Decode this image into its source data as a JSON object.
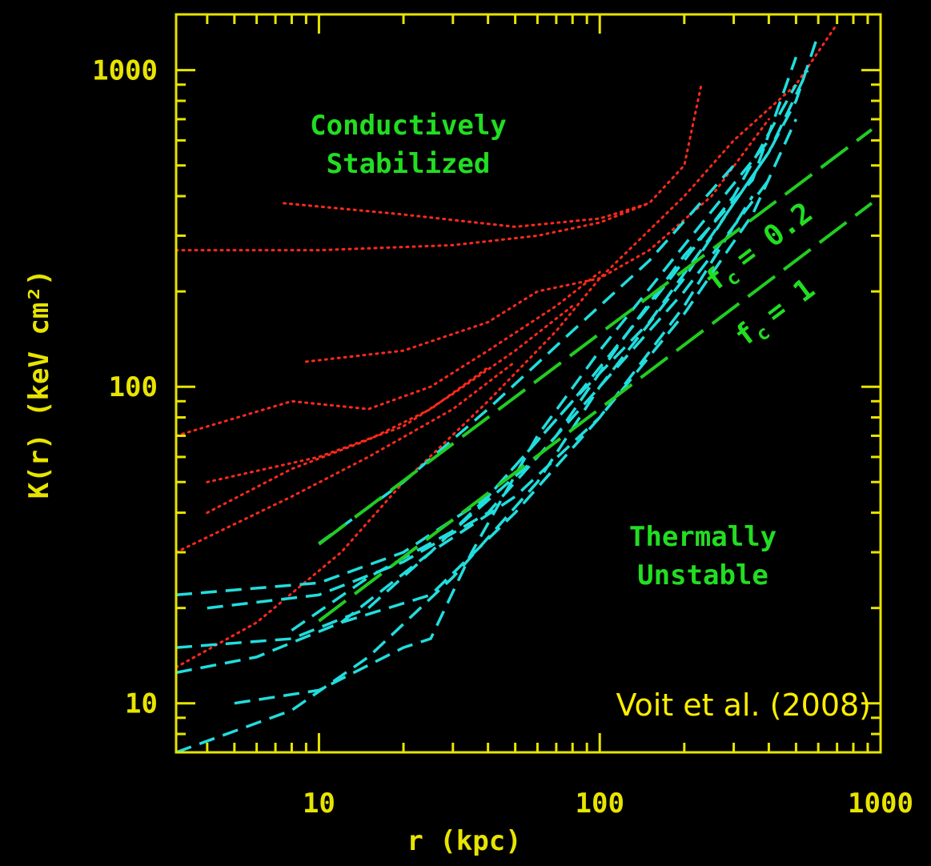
{
  "chart_data": {
    "type": "line",
    "x_label": "r   (kpc)",
    "y_label": "K(r)   (keV cm²)",
    "log_x": true,
    "log_y": true,
    "xlim": [
      3.1,
      1000
    ],
    "ylim": [
      7,
      1500
    ],
    "xticks": [
      10,
      100,
      1000
    ],
    "yticks": [
      10,
      100,
      1000
    ],
    "xminorticks": [
      4,
      5,
      6,
      7,
      8,
      9,
      20,
      30,
      40,
      50,
      60,
      70,
      80,
      90,
      200,
      300,
      400,
      500,
      600,
      700,
      800,
      900
    ],
    "yminorticks": [
      8,
      9,
      20,
      30,
      40,
      50,
      60,
      70,
      80,
      90,
      200,
      300,
      400,
      500,
      600,
      700,
      800,
      900
    ],
    "axis_color": "#e8e400",
    "region_labels": [
      "Conductively",
      "Stabilized",
      "Thermally",
      "Unstable"
    ],
    "region_color": "#22dd22",
    "credit": "Voit et al. (2008)",
    "line_labels": [
      {
        "symbol": "f",
        "subscript": "c",
        "text": "= 0.2"
      },
      {
        "symbol": "f",
        "subscript": "c",
        "text": "= 1"
      }
    ],
    "series": [
      {
        "style": "dotted",
        "color": "#ff2a1a",
        "x": [
          7.5,
          20,
          50,
          100,
          150,
          200,
          230
        ],
        "values": [
          380,
          350,
          320,
          340,
          380,
          500,
          900
        ]
      },
      {
        "style": "dotted",
        "color": "#ff2a1a",
        "x": [
          3.1,
          10,
          30,
          60,
          100,
          150
        ],
        "values": [
          270,
          270,
          280,
          300,
          330,
          380
        ]
      },
      {
        "style": "dotted",
        "color": "#ff2a1a",
        "x": [
          9,
          20,
          40,
          60,
          100,
          150,
          250,
          400
        ],
        "values": [
          120,
          130,
          160,
          200,
          220,
          270,
          400,
          700
        ]
      },
      {
        "style": "dotted",
        "color": "#ff2a1a",
        "x": [
          3.1,
          8,
          15,
          25,
          40,
          70,
          100
        ],
        "values": [
          70,
          90,
          85,
          100,
          130,
          180,
          230
        ]
      },
      {
        "style": "dotted",
        "color": "#ff2a1a",
        "x": [
          4,
          10,
          20,
          30,
          50,
          80
        ],
        "values": [
          50,
          60,
          75,
          95,
          130,
          180
        ]
      },
      {
        "style": "dotted",
        "color": "#ff2a1a",
        "x": [
          3.1,
          8,
          15,
          30,
          50
        ],
        "values": [
          30,
          45,
          60,
          85,
          120
        ]
      },
      {
        "style": "dotted",
        "color": "#ff2a1a",
        "x": [
          3.1,
          6,
          12,
          20,
          40,
          70,
          100,
          200,
          300,
          500,
          700
        ],
        "values": [
          13,
          18,
          30,
          50,
          90,
          150,
          220,
          400,
          600,
          900,
          1400
        ]
      },
      {
        "style": "dotted",
        "color": "#ff2a1a",
        "x": [
          4,
          8,
          15,
          25,
          40
        ],
        "values": [
          40,
          55,
          68,
          85,
          115
        ]
      },
      {
        "style": "dashed",
        "color": "#22dddd",
        "x": [
          3.1,
          8,
          15,
          30,
          60,
          100,
          200,
          300,
          400,
          500,
          600
        ],
        "values": [
          7,
          9.5,
          14,
          25,
          50,
          100,
          220,
          380,
          550,
          800,
          1300
        ]
      },
      {
        "style": "dashed",
        "color": "#22dddd",
        "x": [
          3.1,
          10,
          20,
          40,
          80,
          150,
          250,
          400,
          550
        ],
        "values": [
          22,
          24,
          30,
          45,
          90,
          160,
          300,
          550,
          1000
        ]
      },
      {
        "style": "dashed",
        "color": "#22dddd",
        "x": [
          3.1,
          8,
          15,
          25,
          40,
          80,
          150,
          300,
          500
        ],
        "values": [
          15,
          16,
          20,
          30,
          45,
          90,
          180,
          400,
          900
        ]
      },
      {
        "style": "dashed",
        "color": "#22dddd",
        "x": [
          3.1,
          6,
          12,
          25,
          50,
          100,
          200,
          350,
          500
        ],
        "values": [
          12.5,
          14,
          18,
          22,
          40,
          80,
          170,
          350,
          700
        ]
      },
      {
        "style": "dashed",
        "color": "#22dddd",
        "x": [
          5,
          10,
          20,
          25,
          35,
          60,
          100,
          200,
          400
        ],
        "values": [
          10,
          11,
          15,
          16,
          30,
          70,
          130,
          280,
          600
        ]
      },
      {
        "style": "dashed",
        "color": "#22dddd",
        "x": [
          4,
          10,
          20,
          40,
          70,
          120,
          200,
          350,
          500
        ],
        "values": [
          20,
          22,
          28,
          40,
          70,
          140,
          260,
          450,
          1100
        ]
      },
      {
        "style": "dashed",
        "color": "#22dddd",
        "x": [
          10,
          20,
          40,
          80,
          150,
          300
        ],
        "values": [
          32,
          50,
          85,
          150,
          250,
          500
        ]
      },
      {
        "style": "dashed",
        "color": "#22dddd",
        "x": [
          8,
          15,
          30,
          60,
          100,
          200,
          400
        ],
        "values": [
          17,
          25,
          35,
          60,
          100,
          200,
          450
        ]
      },
      {
        "style": "dashed",
        "color": "#22dddd",
        "x": [
          12,
          25,
          50,
          100,
          200,
          350
        ],
        "values": [
          18,
          30,
          45,
          80,
          180,
          400
        ]
      },
      {
        "style": "longdash",
        "color": "#22cc22",
        "x": [
          10,
          930
        ],
        "values": [
          31.8,
          649
        ]
      },
      {
        "style": "longdash",
        "color": "#22cc22",
        "x": [
          10,
          930
        ],
        "values": [
          18.2,
          380
        ]
      }
    ]
  }
}
